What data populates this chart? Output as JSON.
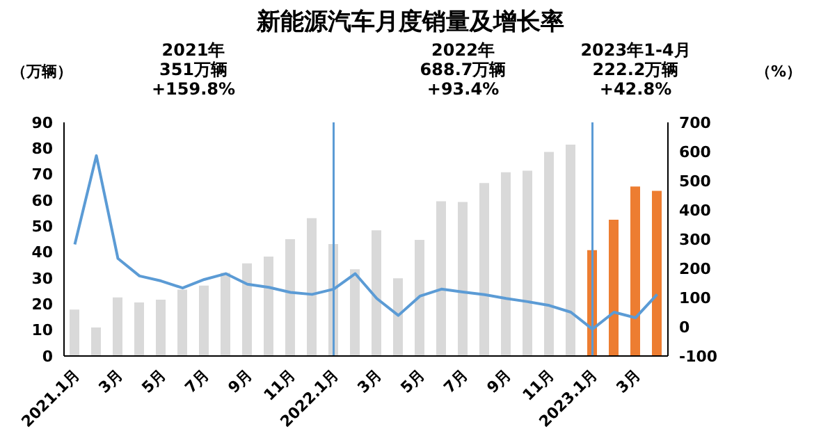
{
  "chart_data": {
    "type": "bar",
    "title": "新能源汽车月度销量及增长率",
    "ylabel": "（万辆）",
    "y2label": "（%）",
    "categories": [
      "2021.1月",
      null,
      "3月",
      null,
      "5月",
      null,
      "7月",
      null,
      "9月",
      null,
      "11月",
      null,
      "2022.1月",
      null,
      "3月",
      null,
      "5月",
      null,
      "7月",
      null,
      "9月",
      null,
      "11月",
      null,
      "2023.1月",
      null,
      "3月",
      null
    ],
    "series": [
      {
        "colors": [
          "#d9d9d9",
          "#d9d9d9",
          "#d9d9d9",
          "#d9d9d9",
          "#d9d9d9",
          "#d9d9d9",
          "#d9d9d9",
          "#d9d9d9",
          "#d9d9d9",
          "#d9d9d9",
          "#d9d9d9",
          "#d9d9d9",
          "#d9d9d9",
          "#d9d9d9",
          "#d9d9d9",
          "#d9d9d9",
          "#d9d9d9",
          "#d9d9d9",
          "#d9d9d9",
          "#d9d9d9",
          "#d9d9d9",
          "#d9d9d9",
          "#d9d9d9",
          "#d9d9d9",
          "#ed7d31",
          "#ed7d31",
          "#ed7d31",
          "#ed7d31"
        ],
        "values": [
          17.9,
          11.0,
          22.6,
          20.6,
          21.7,
          25.6,
          27.1,
          32.1,
          35.7,
          38.3,
          45.0,
          53.1,
          43.1,
          33.4,
          48.4,
          29.9,
          44.7,
          59.6,
          59.3,
          66.6,
          70.8,
          71.4,
          78.6,
          81.4,
          40.8,
          52.5,
          65.3,
          63.6
        ]
      },
      {
        "type": "line",
        "axis": "y2",
        "color": "#5b9bd5",
        "values": [
          282,
          586,
          234,
          174,
          157,
          133,
          162,
          182,
          146,
          135,
          118,
          111,
          129,
          182,
          97,
          39,
          105,
          129,
          119,
          110,
          97,
          86,
          73,
          50,
          -8,
          50,
          31,
          111
        ]
      }
    ],
    "ylim": [
      0,
      90
    ],
    "yticks": [
      0,
      10,
      20,
      30,
      40,
      50,
      60,
      70,
      80,
      90
    ],
    "y2lim": [
      -100,
      700
    ],
    "y2ticks": [
      -100,
      0,
      100,
      200,
      300,
      400,
      500,
      600,
      700
    ],
    "ref_lines": [
      {
        "axis": "x",
        "value": "2022.1月",
        "color": "#5b9bd5"
      },
      {
        "axis": "x",
        "value": "2023.1月",
        "color": "#5b9bd5"
      }
    ],
    "annotations": [
      "2021年\n351万辆\n+159.8%",
      "2022年\n688.7万辆\n+93.4%",
      "2023年1-4月\n222.2万辆\n+42.8%"
    ],
    "marker": "none"
  }
}
